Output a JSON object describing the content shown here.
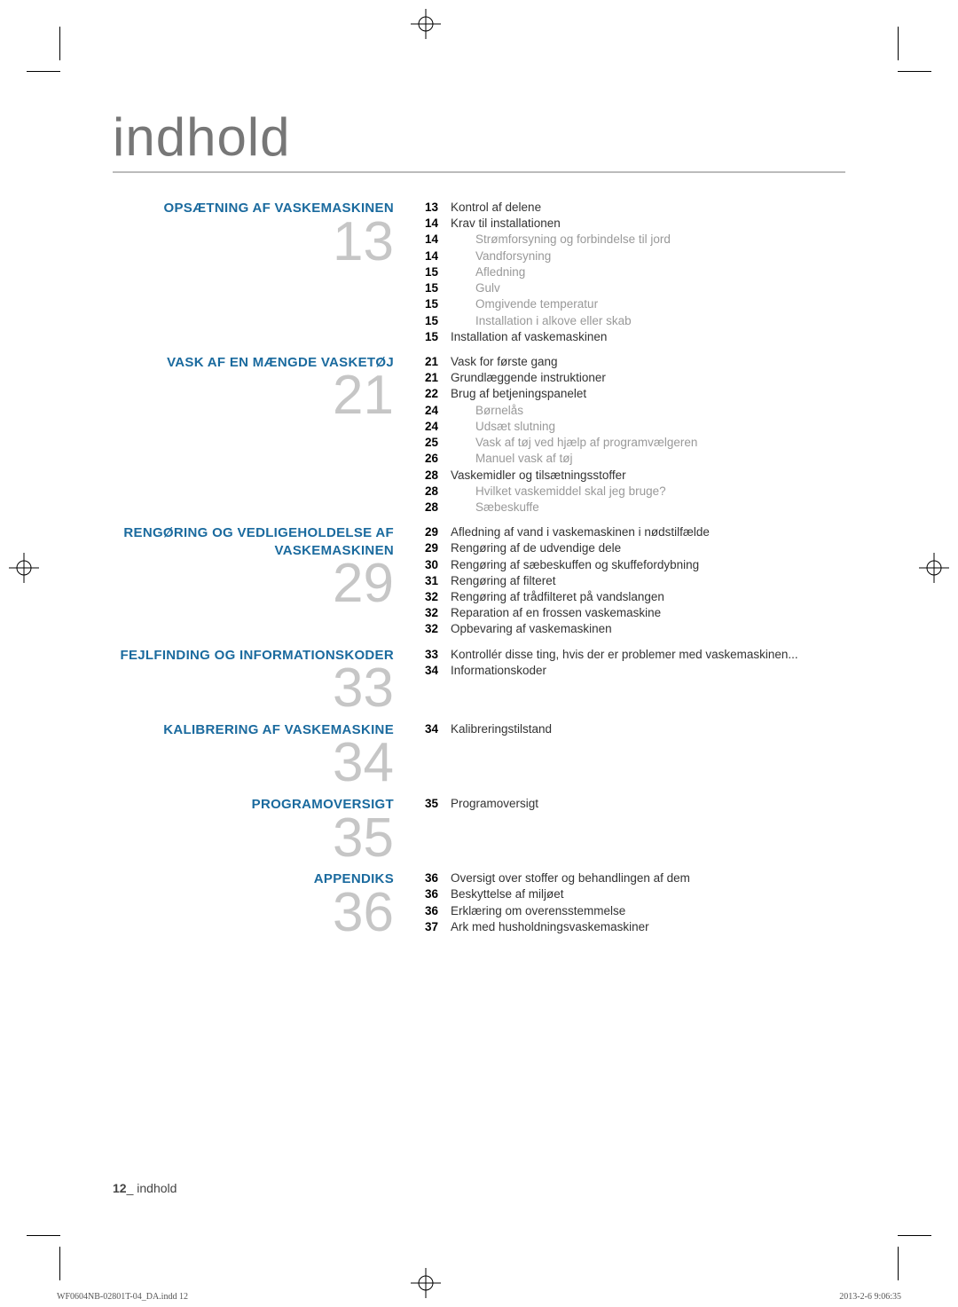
{
  "title": "indhold",
  "colors": {
    "title": "#777777",
    "section_title": "#1a6a9e",
    "big_number": "#c6c6c6",
    "text": "#333333",
    "sub_text": "#999999",
    "underline": "#bbbbbb"
  },
  "typography": {
    "title_fontsize": 60,
    "section_title_fontsize": 15,
    "big_number_fontsize": 62,
    "entry_fontsize": 13.5
  },
  "sections": [
    {
      "title": "OPSÆTNING AF VASKEMASKINEN",
      "number": "13",
      "entries": [
        {
          "pg": "13",
          "txt": "Kontrol af delene",
          "sub": false
        },
        {
          "pg": "14",
          "txt": "Krav til installationen",
          "sub": false
        },
        {
          "pg": "14",
          "txt": "Strømforsyning og forbindelse til jord",
          "sub": true
        },
        {
          "pg": "14",
          "txt": "Vandforsyning",
          "sub": true
        },
        {
          "pg": "15",
          "txt": "Afledning",
          "sub": true
        },
        {
          "pg": "15",
          "txt": "Gulv",
          "sub": true
        },
        {
          "pg": "15",
          "txt": "Omgivende temperatur",
          "sub": true
        },
        {
          "pg": "15",
          "txt": "Installation i alkove eller skab",
          "sub": true
        },
        {
          "pg": "15",
          "txt": "Installation af vaskemaskinen",
          "sub": false
        }
      ]
    },
    {
      "title": "VASK AF EN MÆNGDE VASKETØJ",
      "number": "21",
      "entries": [
        {
          "pg": "21",
          "txt": "Vask for første gang",
          "sub": false
        },
        {
          "pg": "21",
          "txt": "Grundlæggende instruktioner",
          "sub": false
        },
        {
          "pg": "22",
          "txt": "Brug af betjeningspanelet",
          "sub": false
        },
        {
          "pg": "24",
          "txt": "Børnelås",
          "sub": true
        },
        {
          "pg": "24",
          "txt": "Udsæt slutning",
          "sub": true
        },
        {
          "pg": "25",
          "txt": "Vask af tøj ved hjælp af programvælgeren",
          "sub": true
        },
        {
          "pg": "26",
          "txt": "Manuel vask af tøj",
          "sub": true
        },
        {
          "pg": "28",
          "txt": "Vaskemidler og tilsætningsstoffer",
          "sub": false
        },
        {
          "pg": "28",
          "txt": "Hvilket vaskemiddel skal jeg bruge?",
          "sub": true
        },
        {
          "pg": "28",
          "txt": "Sæbeskuffe",
          "sub": true
        }
      ]
    },
    {
      "title": "RENGØRING OG VEDLIGEHOLDELSE AF VASKEMASKINEN",
      "number": "29",
      "entries": [
        {
          "pg": "29",
          "txt": "Afledning af vand i vaskemaskinen i nødstilfælde",
          "sub": false
        },
        {
          "pg": "29",
          "txt": "Rengøring af de udvendige dele",
          "sub": false
        },
        {
          "pg": "30",
          "txt": "Rengøring af sæbeskuffen og skuffefordybning",
          "sub": false
        },
        {
          "pg": "31",
          "txt": "Rengøring af filteret",
          "sub": false
        },
        {
          "pg": "32",
          "txt": "Rengøring af trådfilteret på vandslangen",
          "sub": false
        },
        {
          "pg": "32",
          "txt": "Reparation af en frossen vaskemaskine",
          "sub": false
        },
        {
          "pg": "32",
          "txt": "Opbevaring af vaskemaskinen",
          "sub": false
        }
      ]
    },
    {
      "title": "FEJLFINDING OG INFORMATIONSKODER",
      "number": "33",
      "entries": [
        {
          "pg": "33",
          "txt": "Kontrollér disse ting, hvis der er problemer med vaskemaskinen...",
          "sub": false
        },
        {
          "pg": "34",
          "txt": "Informationskoder",
          "sub": false
        }
      ]
    },
    {
      "title": "KALIBRERING AF VASKEMASKINE",
      "number": "34",
      "entries": [
        {
          "pg": "34",
          "txt": "Kalibreringstilstand",
          "sub": false
        }
      ]
    },
    {
      "title": "PROGRAMOVERSIGT",
      "number": "35",
      "entries": [
        {
          "pg": "35",
          "txt": "Programoversigt",
          "sub": false
        }
      ]
    },
    {
      "title": "APPENDIKS",
      "number": "36",
      "entries": [
        {
          "pg": "36",
          "txt": "Oversigt over stoffer og behandlingen af dem",
          "sub": false
        },
        {
          "pg": "36",
          "txt": "Beskyttelse af miljøet",
          "sub": false
        },
        {
          "pg": "36",
          "txt": "Erklæring om overensstemmelse",
          "sub": false
        },
        {
          "pg": "37",
          "txt": "Ark med husholdningsvaskemaskiner",
          "sub": false
        }
      ]
    }
  ],
  "footer": {
    "page_number": "12",
    "label": "indhold"
  },
  "meta": {
    "filename": "WF0604NB-02801T-04_DA.indd   12",
    "timestamp": "2013-2-6   9:06:35"
  }
}
